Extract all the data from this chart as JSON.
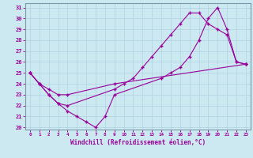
{
  "xlabel": "Windchill (Refroidissement éolien,°C)",
  "xlim": [
    -0.5,
    23.5
  ],
  "ylim": [
    19.8,
    31.4
  ],
  "xticks": [
    0,
    1,
    2,
    3,
    4,
    5,
    6,
    7,
    8,
    9,
    10,
    11,
    12,
    13,
    14,
    15,
    16,
    17,
    18,
    19,
    20,
    21,
    22,
    23
  ],
  "yticks": [
    20,
    21,
    22,
    23,
    24,
    25,
    26,
    27,
    28,
    29,
    30,
    31
  ],
  "bg_color": "#cce8f0",
  "line_color": "#990099",
  "line1_x": [
    0,
    1,
    2,
    3,
    4,
    5,
    6,
    7,
    8,
    9,
    14,
    15,
    16,
    17,
    18,
    19,
    20,
    21,
    22,
    23
  ],
  "line1_y": [
    25,
    24,
    23,
    22.2,
    21.5,
    21.0,
    20.5,
    20.0,
    21.0,
    23.0,
    24.5,
    25.0,
    25.5,
    26.5,
    28.0,
    30.0,
    31.0,
    29.0,
    26.0,
    25.8
  ],
  "line2_x": [
    0,
    1,
    2,
    3,
    4,
    9,
    10,
    11,
    12,
    13,
    14,
    15,
    16,
    17,
    18,
    19,
    20,
    21,
    22,
    23
  ],
  "line2_y": [
    25,
    24,
    23,
    22.2,
    22.0,
    23.5,
    24.0,
    24.5,
    25.5,
    26.5,
    27.5,
    28.5,
    29.5,
    30.5,
    30.5,
    29.5,
    29.0,
    28.5,
    26.0,
    25.8
  ],
  "line3_x": [
    0,
    1,
    2,
    3,
    4,
    9,
    23
  ],
  "line3_y": [
    25,
    24,
    23.5,
    23.0,
    23.0,
    24.0,
    25.8
  ]
}
